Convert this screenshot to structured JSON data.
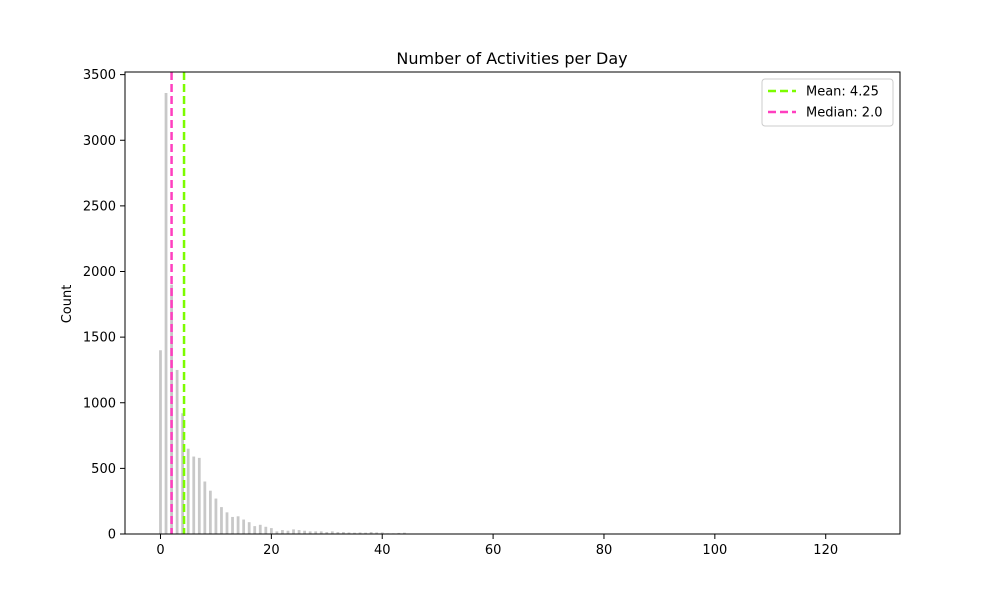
{
  "chart_data": {
    "type": "bar",
    "title": "Number of Activities per Day",
    "xlabel": "",
    "ylabel": "Count",
    "xlim": [
      -6.4,
      133.4
    ],
    "ylim": [
      0,
      3520
    ],
    "xticks": [
      0,
      20,
      40,
      60,
      80,
      100,
      120
    ],
    "yticks": [
      0,
      500,
      1000,
      1500,
      2000,
      2500,
      3000,
      3500
    ],
    "grid": false,
    "bar_color": "#c8c8c8",
    "x": [
      0,
      1,
      2,
      3,
      4,
      5,
      6,
      7,
      8,
      9,
      10,
      11,
      12,
      13,
      14,
      15,
      16,
      17,
      18,
      19,
      20,
      21,
      22,
      23,
      24,
      25,
      26,
      27,
      28,
      29,
      30,
      31,
      32,
      33,
      34,
      35,
      36,
      37,
      38,
      39,
      40,
      41,
      42,
      43,
      44,
      45,
      46,
      47,
      48,
      49,
      50,
      55,
      60,
      70,
      80,
      90,
      100,
      110,
      120,
      127
    ],
    "values": [
      1400,
      3360,
      1900,
      1250,
      920,
      650,
      590,
      580,
      400,
      330,
      270,
      205,
      165,
      130,
      135,
      110,
      90,
      60,
      70,
      55,
      45,
      20,
      30,
      25,
      35,
      30,
      25,
      20,
      20,
      20,
      15,
      20,
      15,
      15,
      12,
      10,
      12,
      10,
      15,
      12,
      12,
      5,
      5,
      8,
      10,
      3,
      3,
      3,
      2,
      2,
      2,
      1,
      1,
      1,
      1,
      1,
      1,
      1,
      1,
      1
    ],
    "reference_lines": [
      {
        "label": "Mean: 4.25",
        "x": 4.25,
        "color": "#7cfc00",
        "style": "dashed"
      },
      {
        "label": "Median: 2.0",
        "x": 2.0,
        "color": "#ff3fbf",
        "style": "dashed"
      }
    ],
    "legend_position": "upper-right"
  }
}
